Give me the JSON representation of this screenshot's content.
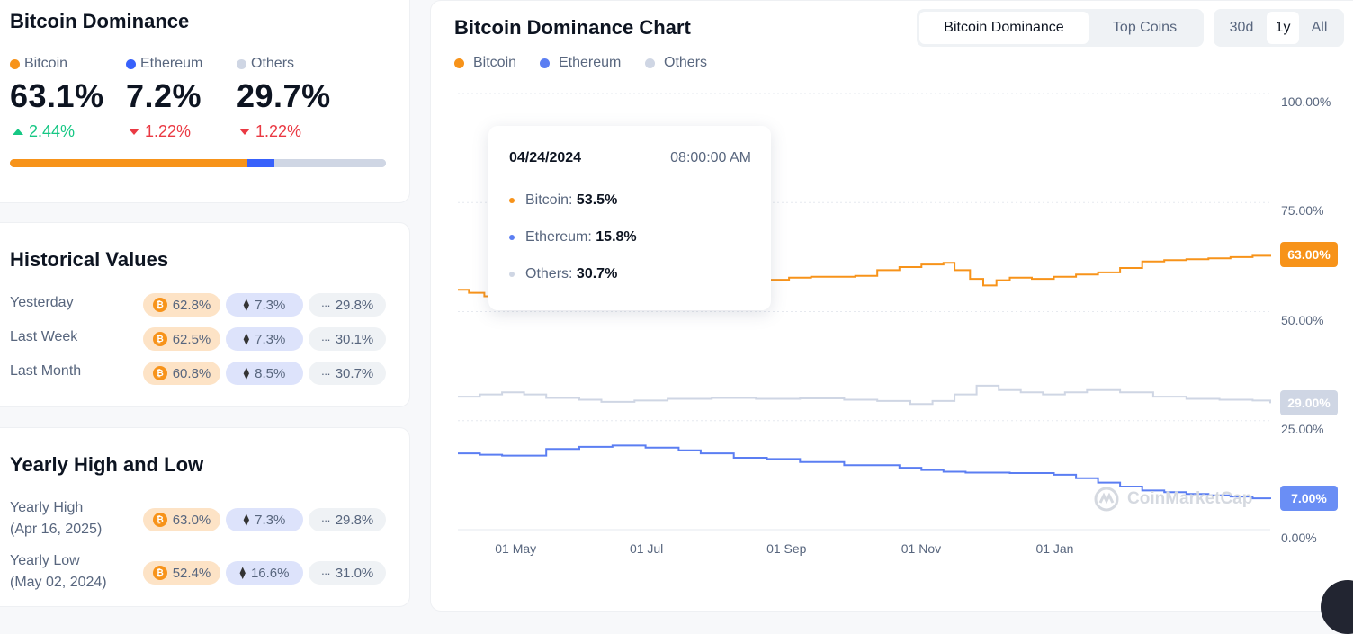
{
  "summary": {
    "title": "Bitcoin Dominance",
    "items": [
      {
        "name": "Bitcoin",
        "value": "63.1%",
        "change": "2.44%",
        "dir": "up",
        "color": "#f7931a"
      },
      {
        "name": "Ethereum",
        "value": "7.2%",
        "change": "1.22%",
        "dir": "down",
        "color": "#3861fb"
      },
      {
        "name": "Others",
        "value": "29.7%",
        "change": "1.22%",
        "dir": "down",
        "color": "#cfd6e4"
      }
    ],
    "bar_shares": [
      63.1,
      7.2,
      29.7
    ]
  },
  "historical": {
    "title": "Historical Values",
    "rows": [
      {
        "label": "Yesterday",
        "btc": "62.8%",
        "eth": "7.3%",
        "others": "29.8%"
      },
      {
        "label": "Last Week",
        "btc": "62.5%",
        "eth": "7.3%",
        "others": "30.1%"
      },
      {
        "label": "Last Month",
        "btc": "60.8%",
        "eth": "8.5%",
        "others": "30.7%"
      }
    ]
  },
  "yearly": {
    "title": "Yearly High and Low",
    "rows": [
      {
        "label": "Yearly High",
        "date": "(Apr 16, 2025)",
        "btc": "63.0%",
        "eth": "7.3%",
        "others": "29.8%"
      },
      {
        "label": "Yearly Low",
        "date": "(May 02, 2024)",
        "btc": "52.4%",
        "eth": "16.6%",
        "others": "31.0%"
      }
    ]
  },
  "chart": {
    "title": "Bitcoin Dominance Chart",
    "tabs": [
      "Bitcoin Dominance",
      "Top Coins"
    ],
    "active_tab": "Bitcoin Dominance",
    "ranges": [
      "30d",
      "1y",
      "All"
    ],
    "active_range": "1y",
    "legend": [
      "Bitcoin",
      "Ethereum",
      "Others"
    ],
    "current_tags": {
      "btc": "63.00%",
      "others": "29.00%",
      "eth": "7.00%"
    },
    "watermark": "CoinMarketCap",
    "tooltip": {
      "date": "04/24/2024",
      "time": "08:00:00 AM",
      "rows": [
        {
          "label": "Bitcoin:",
          "value": "53.5%",
          "color": "#f7931a"
        },
        {
          "label": "Ethereum:",
          "value": "15.8%",
          "color": "#5b7ef2"
        },
        {
          "label": "Others:",
          "value": "30.7%",
          "color": "#cfd6e4"
        }
      ]
    }
  },
  "chart_data": {
    "type": "line",
    "yticks": [
      "100.00%",
      "75.00%",
      "50.00%",
      "25.00%",
      "0.00%"
    ],
    "ylim": [
      0,
      100
    ],
    "xticks": [
      "01 May",
      "01 Jul",
      "01 Sep",
      "01 Nov",
      "01 Jan"
    ],
    "x_day_ticks": [
      16,
      77,
      139,
      200,
      261
    ],
    "x_range_days": [
      0,
      368
    ],
    "series": [
      {
        "name": "Bitcoin",
        "color": "#f7931a",
        "points": [
          [
            0,
            55
          ],
          [
            5,
            54.3
          ],
          [
            12,
            53.5
          ],
          [
            20,
            54.5
          ],
          [
            30,
            55.2
          ],
          [
            40,
            55.8
          ],
          [
            55,
            55.6
          ],
          [
            70,
            56.2
          ],
          [
            85,
            56.5
          ],
          [
            100,
            56.8
          ],
          [
            110,
            57
          ],
          [
            125,
            56.8
          ],
          [
            140,
            57.3
          ],
          [
            150,
            57.8
          ],
          [
            160,
            58
          ],
          [
            180,
            58.2
          ],
          [
            190,
            59.5
          ],
          [
            200,
            60.2
          ],
          [
            210,
            60.8
          ],
          [
            220,
            61.2
          ],
          [
            225,
            59.5
          ],
          [
            232,
            57.5
          ],
          [
            238,
            56
          ],
          [
            244,
            57.2
          ],
          [
            250,
            57.8
          ],
          [
            260,
            57.5
          ],
          [
            270,
            58
          ],
          [
            280,
            58.5
          ],
          [
            290,
            59
          ],
          [
            300,
            60
          ],
          [
            310,
            61.5
          ],
          [
            320,
            61.8
          ],
          [
            330,
            62
          ],
          [
            340,
            62.2
          ],
          [
            350,
            62.5
          ],
          [
            360,
            62.8
          ],
          [
            368,
            63
          ]
        ]
      },
      {
        "name": "Others",
        "color": "#cfd6e4",
        "points": [
          [
            0,
            30.5
          ],
          [
            10,
            31
          ],
          [
            20,
            31.5
          ],
          [
            30,
            31
          ],
          [
            40,
            30.2
          ],
          [
            55,
            29.8
          ],
          [
            65,
            29.3
          ],
          [
            80,
            29.6
          ],
          [
            95,
            30
          ],
          [
            115,
            30.2
          ],
          [
            135,
            30
          ],
          [
            155,
            30.1
          ],
          [
            175,
            29.8
          ],
          [
            190,
            29.5
          ],
          [
            205,
            28.8
          ],
          [
            215,
            29.5
          ],
          [
            225,
            31
          ],
          [
            235,
            33
          ],
          [
            245,
            32
          ],
          [
            255,
            31.5
          ],
          [
            265,
            31
          ],
          [
            275,
            31.5
          ],
          [
            285,
            32
          ],
          [
            300,
            31.5
          ],
          [
            315,
            30.5
          ],
          [
            330,
            30
          ],
          [
            345,
            29.8
          ],
          [
            360,
            29.6
          ],
          [
            368,
            29
          ]
        ]
      },
      {
        "name": "Ethereum",
        "color": "#5b7ef2",
        "points": [
          [
            0,
            17.5
          ],
          [
            10,
            17.2
          ],
          [
            20,
            17
          ],
          [
            30,
            17
          ],
          [
            40,
            18.5
          ],
          [
            55,
            19
          ],
          [
            70,
            19.3
          ],
          [
            85,
            18.8
          ],
          [
            100,
            18.2
          ],
          [
            110,
            17.5
          ],
          [
            125,
            16.5
          ],
          [
            140,
            16.2
          ],
          [
            155,
            15.5
          ],
          [
            175,
            14.8
          ],
          [
            200,
            14.2
          ],
          [
            210,
            13.7
          ],
          [
            220,
            13.3
          ],
          [
            230,
            13.1
          ],
          [
            250,
            13
          ],
          [
            270,
            12.6
          ],
          [
            280,
            11.8
          ],
          [
            290,
            10.8
          ],
          [
            300,
            9.9
          ],
          [
            310,
            9
          ],
          [
            320,
            8.6
          ],
          [
            330,
            8.2
          ],
          [
            340,
            7.9
          ],
          [
            350,
            7.6
          ],
          [
            360,
            7.2
          ],
          [
            368,
            7
          ]
        ]
      }
    ]
  }
}
